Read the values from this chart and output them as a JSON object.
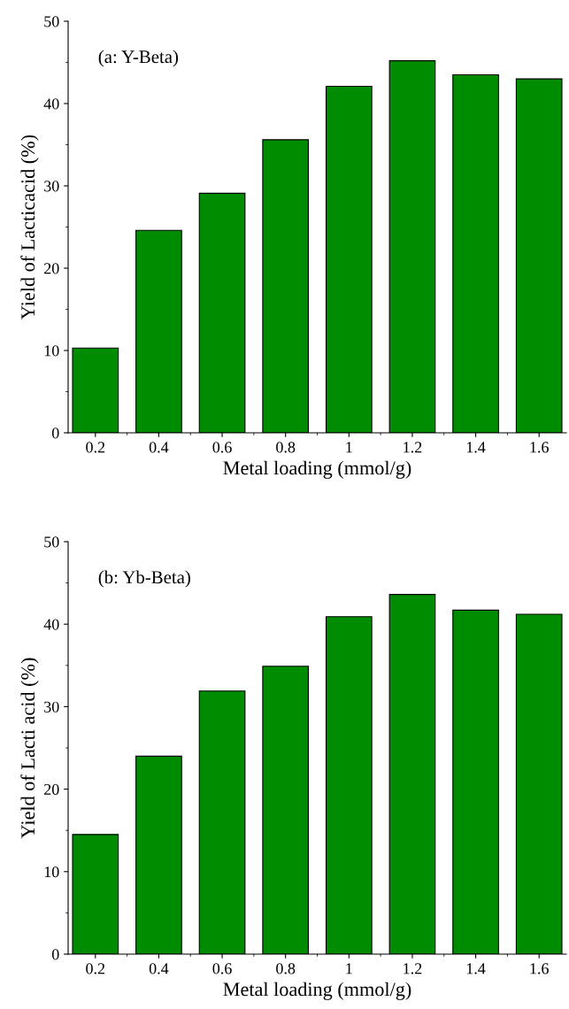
{
  "chart_data": [
    {
      "type": "bar",
      "categories": [
        "0.2",
        "0.4",
        "0.6",
        "0.8",
        "1",
        "1.2",
        "1.4",
        "1.6"
      ],
      "values": [
        10.3,
        24.6,
        29.1,
        35.6,
        42.1,
        45.2,
        43.5,
        43.0
      ],
      "color": "#008c00",
      "xlabel": "Metal loading (mmol/g)",
      "ylabel": "Yield of Lacticacid (%)",
      "ylim": [
        0,
        50
      ],
      "yticks": [
        0,
        10,
        20,
        30,
        40,
        50
      ],
      "annotations": [
        "(a: Y-Beta)"
      ],
      "grid": false,
      "legend": false
    },
    {
      "type": "bar",
      "categories": [
        "0.2",
        "0.4",
        "0.6",
        "0.8",
        "1",
        "1.2",
        "1.4",
        "1.6"
      ],
      "values": [
        14.5,
        24.0,
        31.9,
        34.9,
        40.9,
        43.6,
        41.7,
        41.2
      ],
      "color": "#008c00",
      "xlabel": "Metal loading (mmol/g)",
      "ylabel": "Yield of Lacti acid (%)",
      "ylim": [
        0,
        50
      ],
      "yticks": [
        0,
        10,
        20,
        30,
        40,
        50
      ],
      "annotations": [
        "(b: Yb-Beta)"
      ],
      "grid": false,
      "legend": false
    }
  ]
}
